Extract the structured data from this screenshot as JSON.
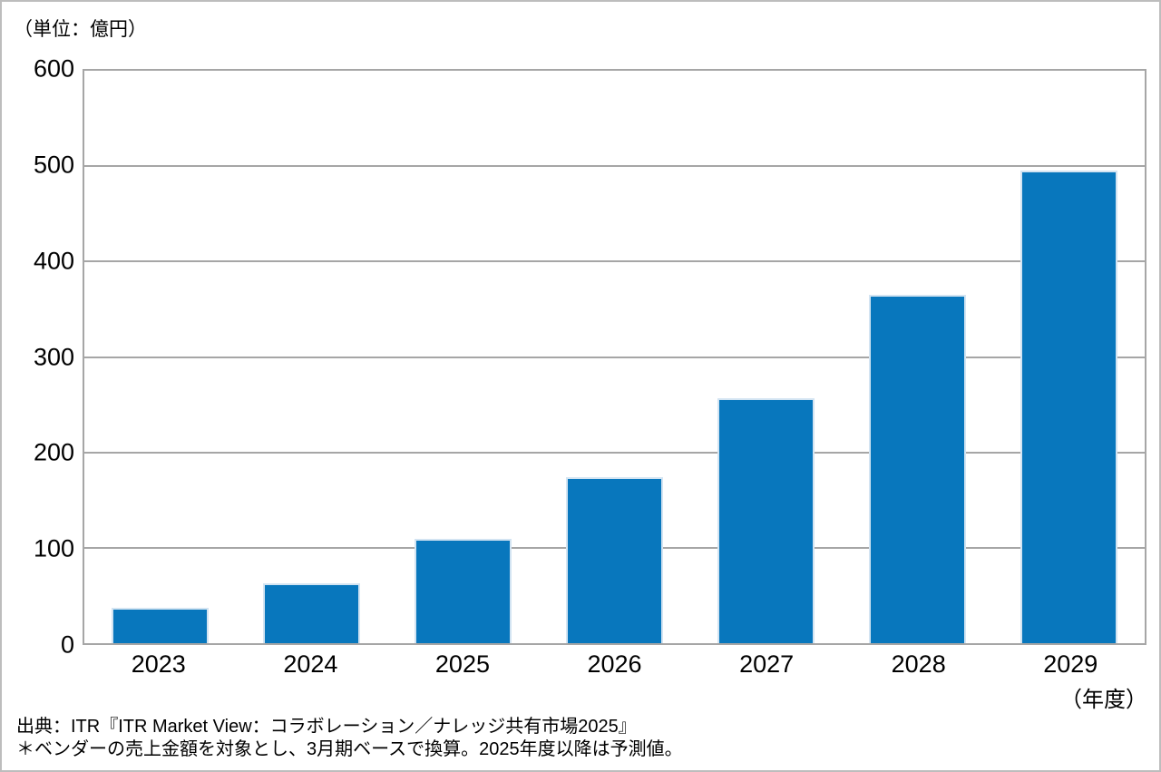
{
  "labels": {
    "unit": "（単位：億円）",
    "x_suffix": "（年度）"
  },
  "source": {
    "line1": "出典：ITR『ITR Market View：コラボレーション／ナレッジ共有市場2025』",
    "line2": "＊ベンダーの売上金額を対象とし、3月期ベースで換算。2025年度以降は予測値。"
  },
  "colors": {
    "bar": "#0877bd",
    "bar_edge": "#d3e4f2",
    "grid": "#a6a6a6",
    "frame": "#bdbdbd",
    "text": "#000000"
  },
  "chart_data": {
    "type": "bar",
    "categories": [
      "2023",
      "2024",
      "2025",
      "2026",
      "2027",
      "2028",
      "2029"
    ],
    "values": [
      37,
      63,
      109,
      174,
      257,
      365,
      495
    ],
    "title": "",
    "xlabel": "（年度）",
    "ylabel": "（単位：億円）",
    "ylim": [
      0,
      600
    ],
    "yticks": [
      0,
      100,
      200,
      300,
      400,
      500,
      600
    ],
    "grid": true,
    "legend": false,
    "bar_color": "#0877bd"
  }
}
